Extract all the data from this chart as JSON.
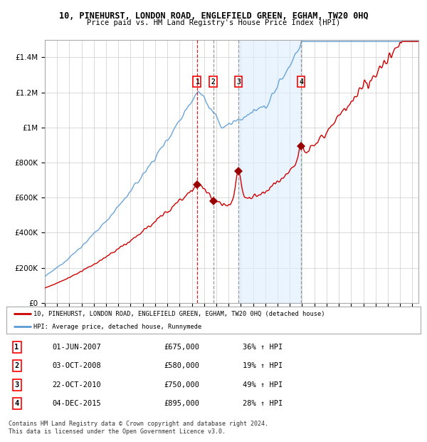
{
  "title": "10, PINEHURST, LONDON ROAD, ENGLEFIELD GREEN, EGHAM, TW20 0HQ",
  "subtitle": "Price paid vs. HM Land Registry's House Price Index (HPI)",
  "legend_line1": "10, PINEHURST, LONDON ROAD, ENGLEFIELD GREEN, EGHAM, TW20 0HQ (detached house)",
  "legend_line2": "HPI: Average price, detached house, Runnymede",
  "footer1": "Contains HM Land Registry data © Crown copyright and database right 2024.",
  "footer2": "This data is licensed under the Open Government Licence v3.0.",
  "transactions": [
    {
      "num": "1",
      "date": "01-JUN-2007",
      "price": "£675,000",
      "hpi": "36% ↑ HPI",
      "year": 2007.42
    },
    {
      "num": "2",
      "date": "03-OCT-2008",
      "price": "£580,000",
      "hpi": "19% ↑ HPI",
      "year": 2008.75
    },
    {
      "num": "3",
      "date": "22-OCT-2010",
      "price": "£750,000",
      "hpi": "49% ↑ HPI",
      "year": 2010.8
    },
    {
      "num": "4",
      "date": "04-DEC-2015",
      "price": "£895,000",
      "hpi": "28% ↑ HPI",
      "year": 2015.92
    }
  ],
  "transaction_prices": [
    675000,
    580000,
    750000,
    895000
  ],
  "hpi_color": "#5b9bd5",
  "price_color": "#cc0000",
  "marker_color": "#990000",
  "vline1_color": "#cc0000",
  "vline234_color": "#888888",
  "shade_color": "#ddeeff",
  "background_chart": "#ffffff",
  "grid_color": "#cccccc",
  "ylim": [
    0,
    1500000
  ],
  "yticks": [
    0,
    200000,
    400000,
    600000,
    800000,
    1000000,
    1200000,
    1400000
  ],
  "xlim_start": 1995,
  "xlim_end": 2025.5,
  "shade_start": 2010.8,
  "shade_end": 2015.92
}
